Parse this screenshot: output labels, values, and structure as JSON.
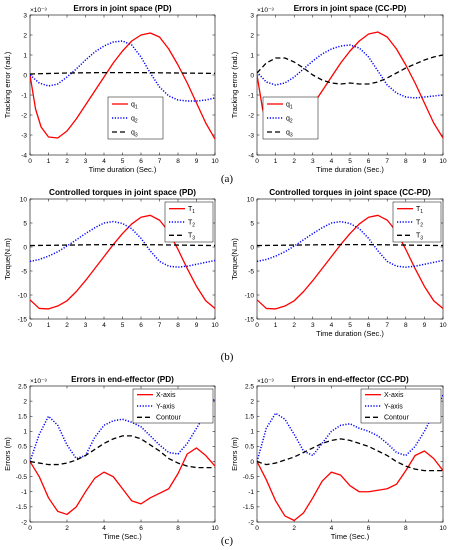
{
  "panel_labels": [
    "(a)",
    "(b)",
    "(c)"
  ],
  "chart_data": [
    {
      "type": "line",
      "title": "Errors in joint space (PD)",
      "xlabel": "Time duration (Sec.)",
      "ylabel": "Tracking error (rad.)",
      "exponent": "×10⁻³",
      "xlim": [
        0,
        10
      ],
      "ylim": [
        -4,
        3
      ],
      "xticks": [
        0,
        1,
        2,
        3,
        4,
        5,
        6,
        7,
        8,
        9,
        10
      ],
      "yticks": [
        -4,
        -3,
        -2,
        -1,
        0,
        1,
        2,
        3
      ],
      "grid": false,
      "legend_position": "center-right",
      "series": [
        {
          "name": "q1",
          "color": "#ff0000",
          "style": "solid",
          "x": [
            0,
            0.3,
            0.6,
            1,
            1.5,
            2,
            2.5,
            3,
            3.5,
            4,
            4.5,
            5,
            5.5,
            6,
            6.5,
            7,
            7.5,
            8,
            8.5,
            9,
            9.5,
            10
          ],
          "y": [
            0,
            -1.7,
            -2.6,
            -3.1,
            -3.15,
            -2.8,
            -2.2,
            -1.5,
            -0.8,
            -0.1,
            0.6,
            1.2,
            1.7,
            2.0,
            2.1,
            1.9,
            1.3,
            0.5,
            -0.4,
            -1.4,
            -2.4,
            -3.2
          ]
        },
        {
          "name": "q2",
          "color": "#0000ff",
          "style": "dotted",
          "x": [
            0,
            0.5,
            1,
            1.5,
            2,
            2.5,
            3,
            3.5,
            4,
            4.5,
            5,
            5.5,
            6,
            6.5,
            7,
            7.5,
            8,
            8.5,
            9,
            9.5,
            10
          ],
          "y": [
            0,
            -0.4,
            -0.55,
            -0.45,
            -0.1,
            0.3,
            0.75,
            1.15,
            1.45,
            1.65,
            1.7,
            1.5,
            0.9,
            0.1,
            -0.6,
            -1.05,
            -1.25,
            -1.3,
            -1.3,
            -1.25,
            -1.15
          ]
        },
        {
          "name": "q3",
          "color": "#000000",
          "style": "dashed",
          "x": [
            0,
            2,
            4,
            6,
            8,
            10
          ],
          "y": [
            0.05,
            0.1,
            0.12,
            0.12,
            0.1,
            0.08
          ]
        }
      ]
    },
    {
      "type": "line",
      "title": "Errors in joint space (CC-PD)",
      "xlabel": "Time duration (Sec.)",
      "ylabel": "Tracking error (rad.)",
      "exponent": "×10⁻³",
      "xlim": [
        0,
        10
      ],
      "ylim": [
        -4,
        3
      ],
      "xticks": [
        0,
        1,
        2,
        3,
        4,
        5,
        6,
        7,
        8,
        9,
        10
      ],
      "yticks": [
        -4,
        -3,
        -2,
        -1,
        0,
        1,
        2,
        3
      ],
      "grid": false,
      "legend_position": "bottom-left",
      "series": [
        {
          "name": "q1",
          "color": "#ff0000",
          "style": "solid",
          "x": [
            0,
            0.3,
            0.6,
            1,
            1.5,
            2,
            2.5,
            3,
            3.5,
            4,
            4.5,
            5,
            5.5,
            6,
            6.5,
            7,
            7.5,
            8,
            8.5,
            9,
            9.5,
            10
          ],
          "y": [
            0,
            -1.7,
            -2.6,
            -3.1,
            -3.15,
            -2.8,
            -2.2,
            -1.5,
            -0.8,
            -0.1,
            0.6,
            1.2,
            1.7,
            2.05,
            2.15,
            1.9,
            1.3,
            0.5,
            -0.4,
            -1.4,
            -2.4,
            -3.15
          ]
        },
        {
          "name": "q2",
          "color": "#0000ff",
          "style": "dotted",
          "x": [
            0,
            0.5,
            1,
            1.5,
            2,
            2.5,
            3,
            3.5,
            4,
            4.5,
            5,
            5.5,
            6,
            6.5,
            7,
            7.5,
            8,
            8.5,
            9,
            9.5,
            10
          ],
          "y": [
            0.15,
            -0.35,
            -0.5,
            -0.4,
            -0.1,
            0.3,
            0.7,
            1.05,
            1.3,
            1.45,
            1.5,
            1.35,
            0.9,
            0.2,
            -0.5,
            -0.9,
            -1.1,
            -1.15,
            -1.1,
            -1.05,
            -1.0
          ]
        },
        {
          "name": "q3",
          "color": "#000000",
          "style": "dashed",
          "x": [
            0,
            0.5,
            1,
            1.5,
            2,
            2.5,
            3,
            3.5,
            4,
            4.5,
            5,
            5.5,
            6,
            6.5,
            7,
            7.5,
            8,
            8.5,
            9,
            9.5,
            10
          ],
          "y": [
            0.1,
            0.6,
            0.85,
            0.85,
            0.65,
            0.35,
            0.0,
            -0.25,
            -0.4,
            -0.45,
            -0.4,
            -0.45,
            -0.45,
            -0.35,
            -0.15,
            0.1,
            0.35,
            0.55,
            0.75,
            0.9,
            1.0
          ]
        }
      ]
    },
    {
      "type": "line",
      "title": "Controlled torques in joint space (PD)",
      "xlabel": "",
      "ylabel": "Torque(N.m)",
      "xlim": [
        0,
        10
      ],
      "ylim": [
        -15,
        10
      ],
      "xticks": [
        0,
        1,
        2,
        3,
        4,
        5,
        6,
        7,
        8,
        9,
        10
      ],
      "yticks": [
        -15,
        -10,
        -5,
        0,
        5,
        10
      ],
      "grid": false,
      "legend_position": "top-right",
      "series": [
        {
          "name": "T1",
          "color": "#ff0000",
          "style": "solid",
          "x": [
            0,
            0.5,
            1,
            1.5,
            2,
            2.5,
            3,
            3.5,
            4,
            4.5,
            5,
            5.5,
            6,
            6.5,
            7,
            7.5,
            8,
            8.5,
            9,
            9.5,
            10
          ],
          "y": [
            -11,
            -12.8,
            -12.9,
            -12.3,
            -11.2,
            -9.3,
            -7.0,
            -4.5,
            -2.0,
            0.5,
            2.8,
            4.8,
            6.2,
            6.6,
            5.6,
            3.2,
            -0.5,
            -4.5,
            -8.2,
            -11.2,
            -12.8
          ]
        },
        {
          "name": "T2",
          "color": "#0000ff",
          "style": "dotted",
          "x": [
            0,
            0.5,
            1,
            1.5,
            2,
            2.5,
            3,
            3.5,
            4,
            4.5,
            5,
            5.5,
            6,
            6.5,
            7,
            7.5,
            8,
            8.5,
            9,
            9.5,
            10
          ],
          "y": [
            -3.0,
            -2.6,
            -1.9,
            -1.0,
            0.2,
            1.5,
            2.8,
            4.0,
            5.0,
            5.3,
            4.9,
            3.8,
            1.8,
            -0.8,
            -3.0,
            -4.0,
            -4.2,
            -4.0,
            -3.6,
            -3.2,
            -2.8
          ]
        },
        {
          "name": "T3",
          "color": "#000000",
          "style": "dashed",
          "x": [
            0,
            2,
            4,
            6,
            8,
            10
          ],
          "y": [
            0.3,
            0.4,
            0.5,
            0.5,
            0.4,
            0.3
          ]
        }
      ]
    },
    {
      "type": "line",
      "title": "Controlled torques in joint space (CC-PD)",
      "xlabel": "Time duration (Sec.)",
      "ylabel": "Torque(N.m)",
      "xlim": [
        0,
        10
      ],
      "ylim": [
        -15,
        10
      ],
      "xticks": [
        0,
        1,
        2,
        3,
        4,
        5,
        6,
        7,
        8,
        9,
        10
      ],
      "yticks": [
        -15,
        -10,
        -5,
        0,
        5,
        10
      ],
      "grid": false,
      "legend_position": "top-right",
      "series": [
        {
          "name": "T1",
          "color": "#ff0000",
          "style": "solid",
          "x": [
            0,
            0.5,
            1,
            1.5,
            2,
            2.5,
            3,
            3.5,
            4,
            4.5,
            5,
            5.5,
            6,
            6.5,
            7,
            7.5,
            8,
            8.5,
            9,
            9.5,
            10
          ],
          "y": [
            -11,
            -12.8,
            -12.9,
            -12.3,
            -11.2,
            -9.3,
            -7.0,
            -4.5,
            -2.0,
            0.5,
            2.8,
            4.8,
            6.2,
            6.6,
            5.6,
            3.2,
            -0.5,
            -4.5,
            -8.2,
            -11.2,
            -12.8
          ]
        },
        {
          "name": "T2",
          "color": "#0000ff",
          "style": "dotted",
          "x": [
            0,
            0.5,
            1,
            1.5,
            2,
            2.5,
            3,
            3.5,
            4,
            4.5,
            5,
            5.5,
            6,
            6.5,
            7,
            7.5,
            8,
            8.5,
            9,
            9.5,
            10
          ],
          "y": [
            -3.0,
            -2.6,
            -1.9,
            -1.0,
            0.2,
            1.5,
            2.8,
            4.0,
            5.0,
            5.3,
            4.9,
            3.8,
            1.8,
            -0.8,
            -3.0,
            -4.0,
            -4.2,
            -4.0,
            -3.6,
            -3.2,
            -2.8
          ]
        },
        {
          "name": "T3",
          "color": "#000000",
          "style": "dashed",
          "x": [
            0,
            2,
            4,
            6,
            8,
            10
          ],
          "y": [
            0.3,
            0.4,
            0.5,
            0.5,
            0.4,
            0.3
          ]
        }
      ]
    },
    {
      "type": "line",
      "title": "Errors in end-effector (PD)",
      "xlabel": "Time (Sec.)",
      "ylabel": "Errors (m)",
      "exponent": "×10⁻³",
      "xlim": [
        0,
        10
      ],
      "ylim": [
        -2,
        2.5
      ],
      "xticks": [
        0,
        2,
        4,
        6,
        8,
        10
      ],
      "yticks": [
        -2,
        -1.5,
        -1,
        -0.5,
        0,
        0.5,
        1,
        1.5,
        2,
        2.5
      ],
      "grid": false,
      "legend_position": "top-right",
      "series": [
        {
          "name": "X-axis",
          "color": "#ff0000",
          "style": "solid",
          "x": [
            0,
            0.5,
            1,
            1.5,
            2,
            2.5,
            3,
            3.5,
            4,
            4.5,
            5,
            5.5,
            6,
            6.5,
            7,
            7.5,
            8,
            8.5,
            9,
            9.5,
            10
          ],
          "y": [
            0,
            -0.5,
            -1.2,
            -1.65,
            -1.75,
            -1.5,
            -1.0,
            -0.55,
            -0.35,
            -0.5,
            -0.9,
            -1.3,
            -1.4,
            -1.2,
            -1.05,
            -0.9,
            -0.4,
            0.25,
            0.45,
            0.2,
            -0.15
          ]
        },
        {
          "name": "Y-axis",
          "color": "#0000ff",
          "style": "dotted",
          "x": [
            0,
            0.5,
            1,
            1.5,
            2,
            2.5,
            3,
            3.5,
            4,
            4.5,
            5,
            5.5,
            6,
            6.5,
            7,
            7.5,
            8,
            8.5,
            9,
            9.5,
            10
          ],
          "y": [
            0,
            0.9,
            1.5,
            1.2,
            0.55,
            0.1,
            0.2,
            0.8,
            1.2,
            1.35,
            1.4,
            1.3,
            1.15,
            0.85,
            0.55,
            0.3,
            0.25,
            0.6,
            1.1,
            1.6,
            2.1
          ]
        },
        {
          "name": "Contour",
          "color": "#000000",
          "style": "dashed",
          "x": [
            0,
            0.5,
            1,
            1.5,
            2,
            2.5,
            3,
            3.5,
            4,
            4.5,
            5,
            5.5,
            6,
            6.5,
            7,
            7.5,
            8,
            8.5,
            9,
            9.5,
            10
          ],
          "y": [
            0,
            -0.05,
            -0.1,
            -0.1,
            -0.05,
            0.05,
            0.2,
            0.4,
            0.6,
            0.75,
            0.85,
            0.85,
            0.75,
            0.55,
            0.35,
            0.1,
            -0.05,
            -0.15,
            -0.2,
            -0.2,
            -0.2
          ]
        }
      ]
    },
    {
      "type": "line",
      "title": "Errors in end-effector (CC-PD)",
      "xlabel": "Time (Sec.)",
      "ylabel": "Errors (m)",
      "exponent": "×10⁻³",
      "xlim": [
        0,
        10
      ],
      "ylim": [
        -2,
        2.5
      ],
      "xticks": [
        0,
        2,
        4,
        6,
        8,
        10
      ],
      "yticks": [
        -2,
        -1.5,
        -1,
        -0.5,
        0,
        0.5,
        1,
        1.5,
        2,
        2.5
      ],
      "grid": false,
      "legend_position": "top-right",
      "series": [
        {
          "name": "X-axis",
          "color": "#ff0000",
          "style": "solid",
          "x": [
            0,
            0.5,
            1,
            1.5,
            2,
            2.5,
            3,
            3.5,
            4,
            4.5,
            5,
            5.5,
            6,
            6.5,
            7,
            7.5,
            8,
            8.5,
            9,
            9.5,
            10
          ],
          "y": [
            0,
            -0.6,
            -1.3,
            -1.8,
            -1.95,
            -1.7,
            -1.2,
            -0.65,
            -0.35,
            -0.45,
            -0.8,
            -1.0,
            -1.0,
            -0.95,
            -0.9,
            -0.75,
            -0.3,
            0.2,
            0.35,
            0.1,
            -0.3
          ]
        },
        {
          "name": "Y-axis",
          "color": "#0000ff",
          "style": "dotted",
          "x": [
            0,
            0.5,
            1,
            1.5,
            2,
            2.5,
            3,
            3.5,
            4,
            4.5,
            5,
            5.5,
            6,
            6.5,
            7,
            7.5,
            8,
            8.5,
            9,
            9.5,
            10
          ],
          "y": [
            0,
            1.1,
            1.6,
            1.4,
            0.9,
            0.35,
            0.2,
            0.6,
            1.0,
            1.2,
            1.25,
            1.1,
            1.0,
            0.85,
            0.6,
            0.3,
            0.2,
            0.5,
            1.0,
            1.6,
            2.2
          ]
        },
        {
          "name": "Contour",
          "color": "#000000",
          "style": "dashed",
          "x": [
            0,
            0.5,
            1,
            1.5,
            2,
            2.5,
            3,
            3.5,
            4,
            4.5,
            5,
            5.5,
            6,
            6.5,
            7,
            7.5,
            8,
            8.5,
            9,
            9.5,
            10
          ],
          "y": [
            0,
            -0.1,
            -0.05,
            0.05,
            0.15,
            0.3,
            0.45,
            0.6,
            0.7,
            0.75,
            0.7,
            0.6,
            0.5,
            0.35,
            0.2,
            0.0,
            -0.15,
            -0.25,
            -0.3,
            -0.3,
            -0.3
          ]
        }
      ]
    }
  ]
}
